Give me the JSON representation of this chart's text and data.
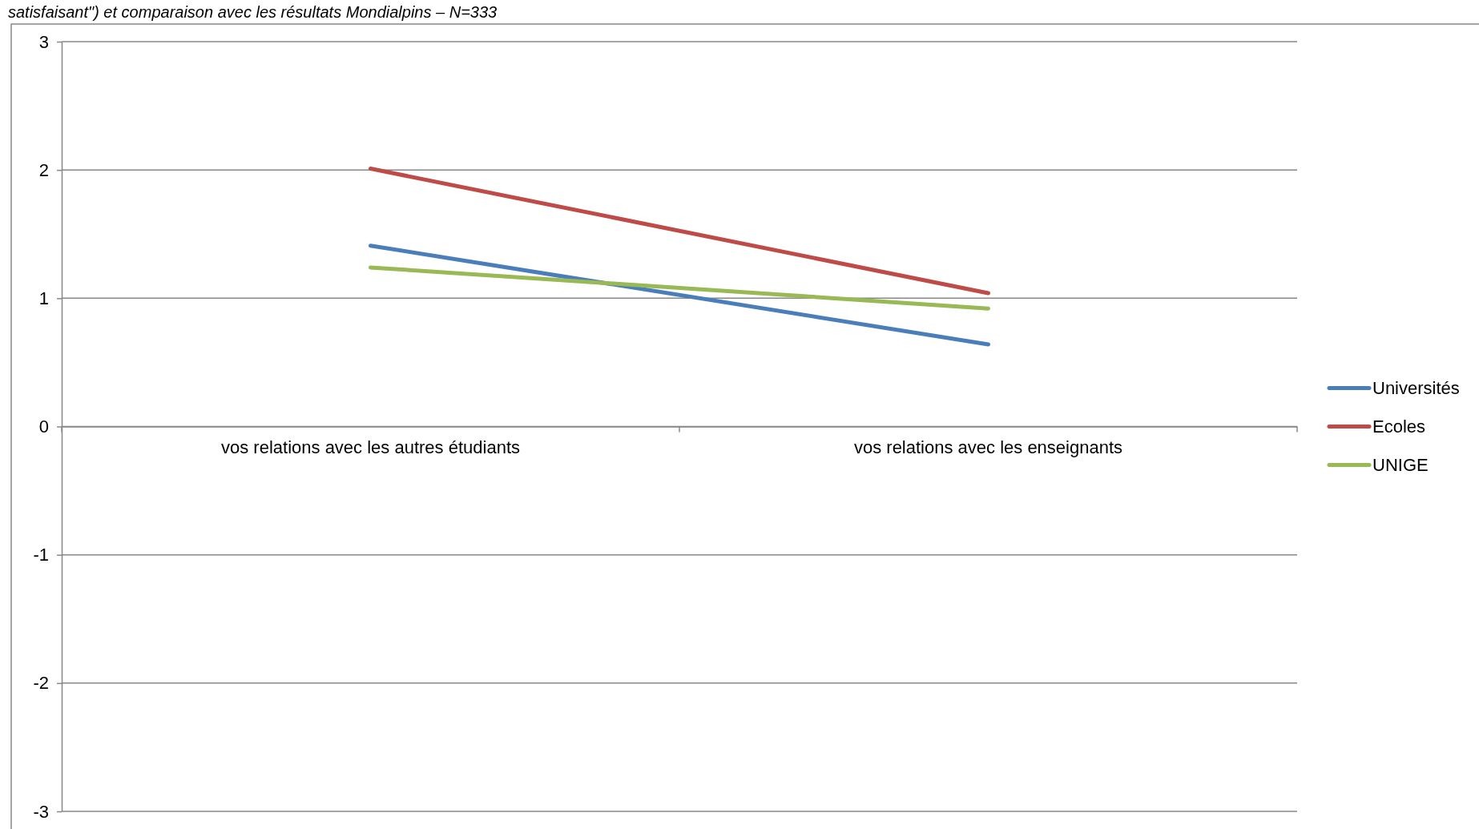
{
  "chart_data": {
    "type": "line",
    "subtitle": "satisfaisant\") et comparaison avec les résultats Mondialpins – N=333",
    "categories": [
      "vos relations avec les autres étudiants",
      "vos relations avec les enseignants"
    ],
    "series": [
      {
        "name": "Universités",
        "color": "#4a7ebb",
        "values": [
          1.41,
          0.64
        ]
      },
      {
        "name": "Ecoles",
        "color": "#be4b48",
        "values": [
          2.01,
          1.04
        ]
      },
      {
        "name": "UNIGE",
        "color": "#98b954",
        "values": [
          1.24,
          0.92
        ]
      }
    ],
    "ylim": [
      -3,
      3
    ],
    "yticks": [
      -3,
      -2,
      -1,
      0,
      1,
      2,
      3
    ],
    "grid": "y",
    "legend": "right",
    "marker": "none",
    "line_style": "solid"
  }
}
